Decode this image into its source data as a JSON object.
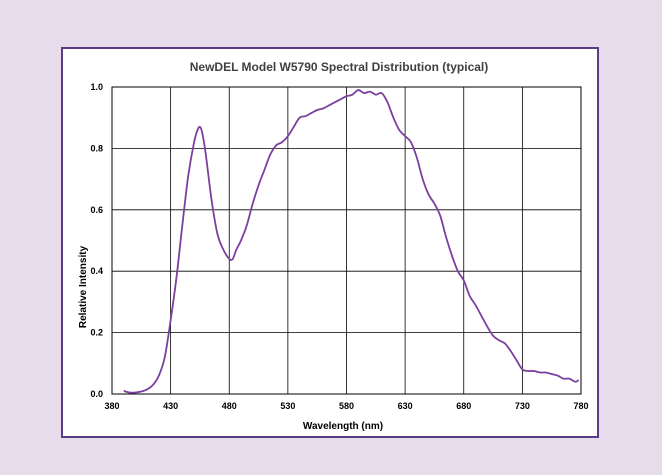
{
  "chart_data": {
    "type": "line",
    "title": "NewDEL Model W5790 Spectral Distribution (typical)",
    "xlabel": "Wavelength (nm)",
    "ylabel": "Relative Intensity",
    "xlim": [
      380,
      780
    ],
    "ylim": [
      0,
      1.0
    ],
    "x_ticks": [
      380,
      430,
      480,
      530,
      580,
      630,
      680,
      730,
      780
    ],
    "y_ticks": [
      0.0,
      0.2,
      0.4,
      0.6,
      0.8,
      1.0
    ],
    "x_tick_labels": [
      "380",
      "430",
      "480",
      "530",
      "580",
      "630",
      "680",
      "730",
      "780"
    ],
    "y_tick_labels": [
      "0.0",
      "0.2",
      "0.4",
      "0.6",
      "0.8",
      "1.0"
    ],
    "grid": true,
    "line_color": "#7b3f9e",
    "series": [
      {
        "x": [
          390,
          395,
          400,
          405,
          410,
          415,
          420,
          425,
          430,
          435,
          440,
          445,
          450,
          453,
          455,
          457,
          460,
          465,
          470,
          475,
          480,
          483,
          486,
          490,
          495,
          500,
          505,
          510,
          515,
          520,
          525,
          530,
          535,
          540,
          545,
          550,
          555,
          560,
          565,
          570,
          575,
          580,
          585,
          590,
          595,
          600,
          605,
          610,
          615,
          620,
          625,
          630,
          635,
          640,
          645,
          650,
          655,
          660,
          665,
          670,
          675,
          680,
          685,
          690,
          695,
          700,
          705,
          710,
          715,
          720,
          725,
          730,
          735,
          740,
          745,
          750,
          755,
          760,
          765,
          770,
          775,
          778
        ],
        "y": [
          0.01,
          0.005,
          0.005,
          0.008,
          0.015,
          0.03,
          0.06,
          0.12,
          0.24,
          0.38,
          0.55,
          0.71,
          0.82,
          0.86,
          0.87,
          0.85,
          0.78,
          0.63,
          0.52,
          0.47,
          0.44,
          0.44,
          0.47,
          0.5,
          0.55,
          0.62,
          0.68,
          0.73,
          0.78,
          0.81,
          0.82,
          0.84,
          0.87,
          0.9,
          0.905,
          0.915,
          0.925,
          0.93,
          0.94,
          0.95,
          0.96,
          0.97,
          0.975,
          0.99,
          0.98,
          0.985,
          0.975,
          0.98,
          0.95,
          0.9,
          0.86,
          0.84,
          0.82,
          0.77,
          0.7,
          0.65,
          0.62,
          0.58,
          0.51,
          0.45,
          0.4,
          0.37,
          0.32,
          0.29,
          0.255,
          0.22,
          0.19,
          0.175,
          0.165,
          0.14,
          0.11,
          0.08,
          0.075,
          0.075,
          0.07,
          0.07,
          0.065,
          0.06,
          0.05,
          0.05,
          0.04,
          0.045
        ]
      }
    ]
  }
}
